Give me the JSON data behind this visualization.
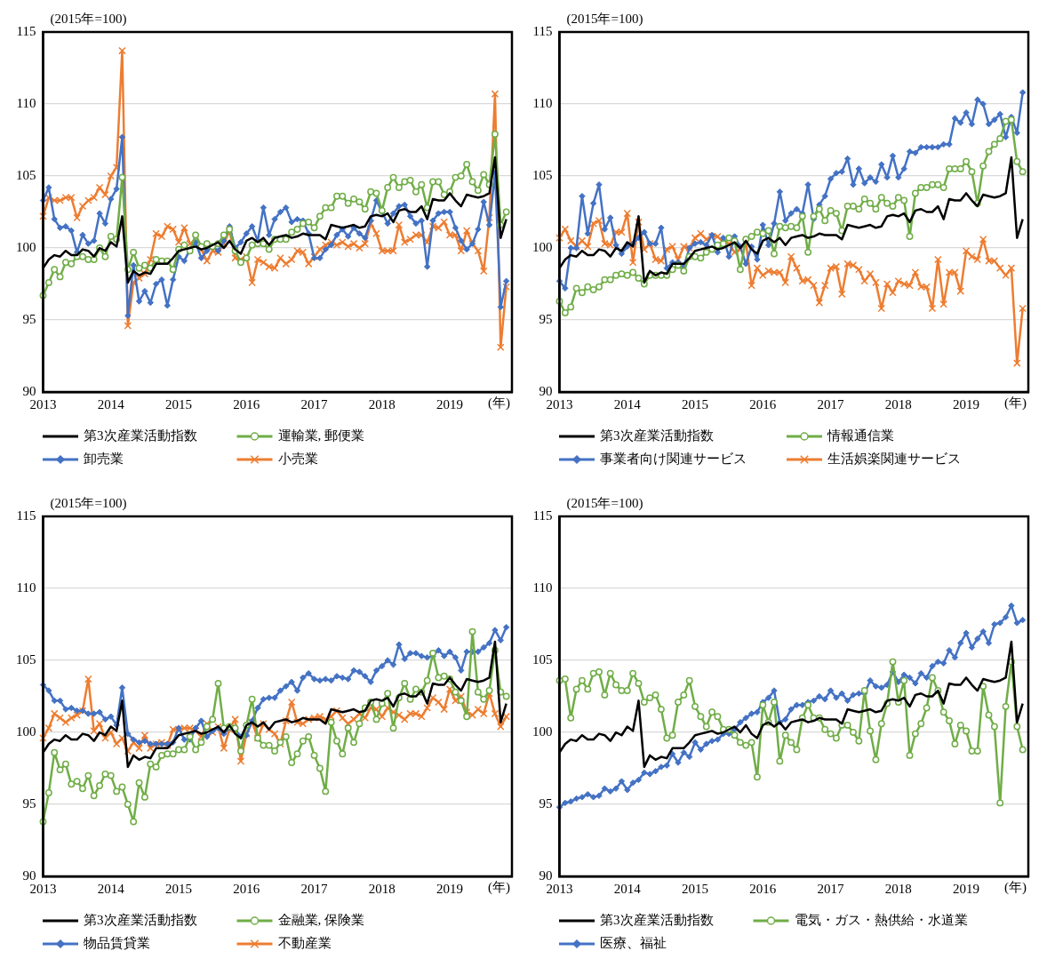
{
  "chart_data": [
    {
      "type": "line",
      "ylabel": "(2015年=100)",
      "xlabel": "(年)",
      "grid": "y",
      "legend": "bottom",
      "ylim": [
        90,
        115
      ],
      "yticks": [
        90,
        95,
        100,
        105,
        110,
        115
      ],
      "categories": [
        "2013",
        null,
        null,
        null,
        null,
        null,
        null,
        null,
        null,
        null,
        null,
        null,
        "2014",
        null,
        null,
        null,
        null,
        null,
        null,
        null,
        null,
        null,
        null,
        null,
        "2015",
        null,
        null,
        null,
        null,
        null,
        null,
        null,
        null,
        null,
        null,
        null,
        "2016",
        null,
        null,
        null,
        null,
        null,
        null,
        null,
        null,
        null,
        null,
        null,
        "2017",
        null,
        null,
        null,
        null,
        null,
        null,
        null,
        null,
        null,
        null,
        null,
        "2018",
        null,
        null,
        null,
        null,
        null,
        null,
        null,
        null,
        null,
        null,
        null,
        "2019",
        null,
        null,
        null,
        null,
        null,
        null,
        null,
        null,
        null,
        null,
        null
      ],
      "series": [
        {
          "name": "第3次産業活動指数",
          "color": "#000000",
          "marker": "none",
          "values": [
            98.6,
            99.2,
            99.5,
            99.4,
            99.8,
            99.5,
            99.5,
            99.9,
            99.8,
            99.4,
            100.0,
            99.8,
            100.4,
            100.1,
            102.2,
            97.6,
            98.4,
            98.1,
            98.3,
            98.2,
            98.9,
            98.9,
            98.9,
            99.3,
            99.8,
            99.9,
            100.0,
            100.1,
            99.9,
            100.0,
            100.2,
            100.4,
            100.0,
            100.5,
            99.9,
            99.6,
            100.5,
            100.7,
            100.4,
            100.7,
            100.2,
            100.7,
            100.8,
            100.9,
            100.7,
            100.8,
            101.0,
            100.9,
            100.9,
            100.9,
            100.6,
            101.6,
            101.5,
            101.4,
            101.5,
            101.6,
            101.4,
            101.5,
            102.2,
            102.3,
            102.2,
            102.4,
            101.8,
            102.6,
            102.7,
            102.5,
            102.5,
            102.9,
            102.0,
            103.4,
            103.3,
            103.3,
            103.8,
            103.3,
            102.9,
            103.7,
            103.6,
            103.5,
            103.6,
            103.8,
            106.3,
            100.7,
            102.0,
            null
          ]
        },
        {
          "name": "運輸業, 郵便業",
          "color": "#70ad47",
          "marker": "circle",
          "values": [
            96.7,
            97.6,
            98.5,
            98.0,
            99.0,
            98.9,
            99.4,
            99.4,
            99.2,
            99.2,
            100.0,
            99.4,
            100.8,
            100.6,
            104.9,
            98.5,
            99.7,
            98.6,
            98.8,
            98.6,
            99.2,
            99.1,
            99.1,
            98.5,
            99.9,
            100.2,
            99.8,
            100.9,
            100.1,
            100.3,
            100.1,
            100.3,
            100.9,
            101.3,
            99.8,
            99.0,
            99.3,
            100.2,
            100.3,
            100.3,
            99.9,
            100.6,
            100.6,
            100.6,
            101.1,
            101.3,
            101.7,
            101.8,
            101.4,
            102.2,
            102.8,
            102.8,
            103.6,
            103.6,
            103.1,
            103.4,
            103.2,
            102.7,
            103.9,
            103.8,
            102.6,
            104.2,
            104.9,
            104.2,
            104.6,
            104.7,
            103.9,
            104.4,
            102.8,
            104.6,
            104.6,
            103.7,
            103.9,
            104.9,
            105.0,
            105.8,
            104.6,
            104.0,
            105.1,
            104.4,
            107.9,
            101.6,
            102.5,
            null
          ]
        },
        {
          "name": "卸売業",
          "color": "#4472c4",
          "marker": "diamond",
          "values": [
            103.3,
            104.2,
            102.0,
            101.4,
            101.5,
            101.2,
            99.7,
            100.9,
            100.3,
            100.5,
            102.4,
            101.7,
            103.4,
            104.1,
            107.7,
            95.3,
            98.8,
            96.3,
            97.0,
            96.2,
            97.5,
            97.8,
            96.0,
            97.8,
            99.4,
            99.1,
            99.9,
            100.4,
            99.3,
            99.8,
            100.1,
            99.8,
            100.5,
            101.5,
            100.0,
            100.4,
            101.0,
            101.5,
            100.5,
            102.8,
            100.9,
            102.0,
            102.5,
            102.8,
            101.8,
            102.0,
            101.9,
            101.0,
            99.3,
            99.3,
            99.9,
            100.2,
            100.9,
            101.3,
            100.8,
            101.4,
            101.0,
            100.7,
            101.9,
            103.3,
            102.5,
            101.7,
            102.4,
            102.9,
            103.0,
            102.2,
            101.7,
            101.9,
            98.7,
            101.9,
            102.4,
            102.5,
            102.5,
            101.4,
            100.5,
            99.9,
            100.3,
            101.3,
            103.2,
            101.6,
            105.2,
            95.9,
            97.7,
            null
          ]
        },
        {
          "name": "小売業",
          "color": "#ed7d31",
          "marker": "cross",
          "values": [
            102.2,
            103.5,
            103.3,
            103.3,
            103.5,
            103.5,
            102.1,
            102.9,
            103.3,
            103.5,
            104.2,
            103.7,
            105.0,
            105.6,
            113.7,
            94.6,
            97.6,
            97.9,
            98.2,
            99.2,
            101.0,
            100.8,
            101.5,
            101.3,
            100.4,
            101.4,
            100.3,
            100.3,
            99.9,
            99.1,
            99.8,
            99.7,
            100.3,
            101.2,
            99.3,
            99.2,
            99.4,
            97.6,
            99.2,
            99.0,
            98.7,
            98.6,
            99.3,
            98.9,
            99.2,
            99.8,
            99.7,
            98.9,
            99.4,
            99.9,
            100.2,
            100.4,
            100.2,
            100.4,
            100.1,
            100.3,
            100.0,
            100.3,
            101.7,
            101.0,
            99.8,
            99.8,
            99.8,
            101.6,
            100.4,
            100.6,
            100.9,
            100.9,
            100.4,
            101.5,
            101.4,
            101.8,
            100.9,
            100.9,
            99.8,
            101.2,
            100.3,
            99.8,
            98.4,
            102.1,
            110.7,
            93.1,
            97.3,
            null
          ]
        }
      ]
    },
    {
      "type": "line",
      "ylabel": "(2015年=100)",
      "xlabel": "(年)",
      "grid": "y",
      "legend": "bottom",
      "ylim": [
        90,
        115
      ],
      "yticks": [
        90,
        95,
        100,
        105,
        110,
        115
      ],
      "categories": [
        "2013",
        null,
        null,
        null,
        null,
        null,
        null,
        null,
        null,
        null,
        null,
        null,
        "2014",
        null,
        null,
        null,
        null,
        null,
        null,
        null,
        null,
        null,
        null,
        null,
        "2015",
        null,
        null,
        null,
        null,
        null,
        null,
        null,
        null,
        null,
        null,
        null,
        "2016",
        null,
        null,
        null,
        null,
        null,
        null,
        null,
        null,
        null,
        null,
        null,
        "2017",
        null,
        null,
        null,
        null,
        null,
        null,
        null,
        null,
        null,
        null,
        null,
        "2018",
        null,
        null,
        null,
        null,
        null,
        null,
        null,
        null,
        null,
        null,
        null,
        "2019",
        null,
        null,
        null,
        null,
        null,
        null,
        null,
        null,
        null,
        null,
        null
      ],
      "series": [
        {
          "name": "第3次産業活動指数",
          "color": "#000000",
          "marker": "none",
          "values": [
            98.6,
            99.2,
            99.5,
            99.4,
            99.8,
            99.5,
            99.5,
            99.9,
            99.8,
            99.4,
            100.0,
            99.8,
            100.4,
            100.1,
            102.2,
            97.6,
            98.4,
            98.1,
            98.3,
            98.2,
            98.9,
            98.9,
            98.9,
            99.3,
            99.8,
            99.9,
            100.0,
            100.1,
            99.9,
            100.0,
            100.2,
            100.4,
            100.0,
            100.5,
            99.9,
            99.6,
            100.5,
            100.7,
            100.4,
            100.7,
            100.2,
            100.7,
            100.8,
            100.9,
            100.7,
            100.8,
            101.0,
            100.9,
            100.9,
            100.9,
            100.6,
            101.6,
            101.5,
            101.4,
            101.5,
            101.6,
            101.4,
            101.5,
            102.2,
            102.3,
            102.2,
            102.4,
            101.8,
            102.6,
            102.7,
            102.5,
            102.5,
            102.9,
            102.0,
            103.4,
            103.3,
            103.3,
            103.8,
            103.3,
            102.9,
            103.7,
            103.6,
            103.5,
            103.6,
            103.8,
            106.3,
            100.7,
            102.0,
            null
          ]
        },
        {
          "name": "情報通信業",
          "color": "#70ad47",
          "marker": "circle",
          "values": [
            96.3,
            95.5,
            95.9,
            97.2,
            96.9,
            97.3,
            97.1,
            97.3,
            97.8,
            97.8,
            98.1,
            98.2,
            98.1,
            98.3,
            97.9,
            97.5,
            98.1,
            98.1,
            98.1,
            98.1,
            98.5,
            98.8,
            98.4,
            99.4,
            99.4,
            99.3,
            99.7,
            99.9,
            100.2,
            100.3,
            100.7,
            100.5,
            98.5,
            100.6,
            100.8,
            101.1,
            101.0,
            101.2,
            99.6,
            101.5,
            101.4,
            101.5,
            101.4,
            102.2,
            99.7,
            102.2,
            102.7,
            101.9,
            102.6,
            102.4,
            101.2,
            102.9,
            102.9,
            102.7,
            103.4,
            103.1,
            102.7,
            103.5,
            103.1,
            102.9,
            103.5,
            103.3,
            100.8,
            103.8,
            104.2,
            104.2,
            104.4,
            104.4,
            104.2,
            105.5,
            105.5,
            105.5,
            106.0,
            105.3,
            103.1,
            105.7,
            106.7,
            107.2,
            107.6,
            108.8,
            108.9,
            106.0,
            105.3,
            null
          ]
        },
        {
          "name": "事業者向け関連サービス",
          "color": "#4472c4",
          "marker": "diamond",
          "values": [
            97.7,
            97.2,
            100.0,
            100.0,
            103.6,
            101.0,
            103.1,
            104.4,
            101.3,
            102.1,
            100.2,
            99.6,
            100.1,
            100.3,
            100.7,
            101.1,
            100.3,
            100.3,
            101.4,
            98.6,
            99.0,
            99.0,
            98.7,
            100.0,
            100.3,
            100.4,
            100.2,
            100.9,
            99.7,
            100.7,
            99.4,
            100.8,
            100.1,
            98.9,
            100.1,
            99.2,
            101.6,
            100.2,
            101.7,
            103.9,
            101.9,
            102.4,
            102.7,
            102.4,
            104.4,
            102.0,
            103.0,
            103.6,
            104.8,
            105.2,
            105.3,
            106.2,
            104.4,
            105.5,
            104.5,
            104.9,
            104.6,
            105.8,
            104.9,
            106.4,
            104.9,
            105.5,
            106.7,
            106.6,
            107.0,
            107.0,
            107.0,
            107.0,
            107.2,
            107.2,
            109.0,
            108.7,
            109.4,
            108.6,
            110.3,
            110.0,
            108.6,
            108.9,
            109.3,
            107.7,
            109.1,
            108.0,
            110.8,
            null
          ]
        },
        {
          "name": "生活娯楽関連サービス",
          "color": "#ed7d31",
          "marker": "cross",
          "values": [
            100.7,
            101.3,
            100.5,
            100.1,
            100.5,
            100.1,
            101.7,
            101.9,
            100.3,
            100.2,
            101.1,
            101.1,
            102.4,
            99.0,
            101.8,
            99.9,
            100.3,
            99.2,
            99.1,
            99.9,
            100.1,
            99.2,
            100.1,
            100.0,
            100.7,
            101.0,
            100.6,
            100.8,
            100.8,
            100.4,
            100.3,
            99.7,
            99.9,
            100.4,
            97.4,
            98.6,
            98.1,
            98.4,
            98.3,
            98.3,
            97.6,
            99.4,
            98.6,
            97.7,
            97.8,
            97.4,
            96.2,
            97.4,
            98.6,
            98.7,
            96.8,
            98.9,
            98.8,
            98.5,
            97.7,
            98.2,
            97.6,
            95.8,
            97.5,
            96.9,
            97.7,
            97.5,
            97.4,
            98.3,
            97.3,
            97.3,
            95.8,
            99.2,
            96.1,
            98.3,
            98.3,
            97.0,
            99.8,
            99.4,
            99.2,
            100.6,
            99.1,
            99.1,
            98.6,
            98.1,
            98.6,
            92.0,
            95.8,
            null
          ]
        }
      ]
    },
    {
      "type": "line",
      "ylabel": "(2015年=100)",
      "xlabel": "(年)",
      "grid": "y",
      "legend": "bottom",
      "ylim": [
        90,
        115
      ],
      "yticks": [
        90,
        95,
        100,
        105,
        110,
        115
      ],
      "categories": [
        "2013",
        null,
        null,
        null,
        null,
        null,
        null,
        null,
        null,
        null,
        null,
        null,
        "2014",
        null,
        null,
        null,
        null,
        null,
        null,
        null,
        null,
        null,
        null,
        null,
        "2015",
        null,
        null,
        null,
        null,
        null,
        null,
        null,
        null,
        null,
        null,
        null,
        "2016",
        null,
        null,
        null,
        null,
        null,
        null,
        null,
        null,
        null,
        null,
        null,
        "2017",
        null,
        null,
        null,
        null,
        null,
        null,
        null,
        null,
        null,
        null,
        null,
        "2018",
        null,
        null,
        null,
        null,
        null,
        null,
        null,
        null,
        null,
        null,
        null,
        "2019",
        null,
        null,
        null,
        null,
        null,
        null,
        null,
        null,
        null,
        null,
        null
      ],
      "series": [
        {
          "name": "第3次産業活動指数",
          "color": "#000000",
          "marker": "none",
          "values": [
            98.6,
            99.2,
            99.5,
            99.4,
            99.8,
            99.5,
            99.5,
            99.9,
            99.8,
            99.4,
            100.0,
            99.8,
            100.4,
            100.1,
            102.2,
            97.6,
            98.4,
            98.1,
            98.3,
            98.2,
            98.9,
            98.9,
            98.9,
            99.3,
            99.8,
            99.9,
            100.0,
            100.1,
            99.9,
            100.0,
            100.2,
            100.4,
            100.0,
            100.5,
            99.9,
            99.6,
            100.5,
            100.7,
            100.4,
            100.7,
            100.2,
            100.7,
            100.8,
            100.9,
            100.7,
            100.8,
            101.0,
            100.9,
            100.9,
            100.9,
            100.6,
            101.6,
            101.5,
            101.4,
            101.5,
            101.6,
            101.4,
            101.5,
            102.2,
            102.3,
            102.2,
            102.4,
            101.8,
            102.6,
            102.7,
            102.5,
            102.5,
            102.9,
            102.0,
            103.4,
            103.3,
            103.3,
            103.8,
            103.3,
            102.9,
            103.7,
            103.6,
            103.5,
            103.6,
            103.8,
            106.3,
            100.7,
            102.0,
            null
          ]
        },
        {
          "name": "金融業, 保険業",
          "color": "#70ad47",
          "marker": "circle",
          "values": [
            93.8,
            95.8,
            98.6,
            97.4,
            97.8,
            96.4,
            96.6,
            96.1,
            97.0,
            95.6,
            96.3,
            97.1,
            97.0,
            95.9,
            96.2,
            95.0,
            93.8,
            96.5,
            95.5,
            97.8,
            97.6,
            98.4,
            98.5,
            98.5,
            98.8,
            98.8,
            99.7,
            98.8,
            99.3,
            100.4,
            100.9,
            103.4,
            100.3,
            100.4,
            100.3,
            98.7,
            100.5,
            102.3,
            99.6,
            99.1,
            99.1,
            98.7,
            99.3,
            99.7,
            97.9,
            98.5,
            99.4,
            99.7,
            98.4,
            97.5,
            95.9,
            100.7,
            99.4,
            98.5,
            100.3,
            99.3,
            100.6,
            101.7,
            102.1,
            100.9,
            102.0,
            102.7,
            100.3,
            102.4,
            103.4,
            102.3,
            103.0,
            102.8,
            103.6,
            105.5,
            103.8,
            103.9,
            103.7,
            102.8,
            102.2,
            101.1,
            107.0,
            102.8,
            102.3,
            102.9,
            105.7,
            102.8,
            102.5,
            null
          ]
        },
        {
          "name": "物品賃貸業",
          "color": "#4472c4",
          "marker": "diamond",
          "values": [
            103.3,
            102.9,
            102.2,
            102.2,
            101.6,
            101.7,
            101.5,
            101.5,
            101.3,
            101.3,
            101.4,
            100.9,
            101.1,
            100.5,
            103.1,
            99.9,
            99.5,
            99.3,
            99.4,
            99.2,
            99.2,
            99.2,
            99.2,
            99.3,
            100.3,
            99.5,
            99.5,
            100.3,
            100.8,
            99.7,
            100.1,
            100.3,
            99.9,
            100.3,
            100.2,
            99.7,
            99.8,
            100.8,
            101.7,
            102.3,
            102.4,
            102.4,
            102.9,
            103.2,
            103.5,
            102.9,
            103.8,
            104.1,
            103.7,
            103.6,
            103.7,
            103.6,
            103.9,
            103.8,
            103.7,
            104.3,
            104.2,
            103.9,
            103.5,
            104.3,
            104.6,
            105.0,
            104.7,
            106.1,
            105.1,
            105.5,
            105.5,
            105.3,
            105.2,
            105.3,
            105.7,
            105.3,
            105.6,
            105.2,
            104.3,
            105.6,
            105.6,
            105.6,
            105.9,
            106.2,
            107.1,
            106.4,
            107.3,
            null
          ]
        },
        {
          "name": "不動産業",
          "color": "#ed7d31",
          "marker": "cross",
          "values": [
            99.6,
            100.3,
            101.3,
            101.0,
            100.7,
            101.0,
            101.2,
            101.5,
            103.7,
            100.1,
            100.6,
            99.6,
            100.0,
            99.2,
            99.6,
            98.7,
            99.3,
            98.9,
            99.8,
            98.9,
            99.2,
            99.3,
            99.1,
            100.2,
            100.2,
            100.3,
            100.3,
            100.1,
            99.7,
            100.6,
            100.0,
            100.4,
            98.9,
            100.2,
            100.9,
            98.0,
            99.9,
            100.7,
            99.6,
            100.6,
            100.2,
            99.9,
            99.2,
            100.8,
            102.1,
            100.7,
            100.6,
            100.9,
            101.0,
            101.1,
            100.9,
            101.1,
            101.5,
            101.0,
            100.6,
            100.9,
            101.3,
            101.0,
            101.7,
            101.6,
            101.1,
            101.7,
            101.4,
            101.2,
            100.9,
            101.3,
            101.3,
            101.1,
            101.7,
            102.4,
            102.1,
            101.6,
            103.0,
            102.2,
            102.5,
            101.4,
            101.2,
            101.6,
            101.3,
            102.7,
            101.3,
            100.4,
            101.1,
            null
          ]
        }
      ]
    },
    {
      "type": "line",
      "ylabel": "(2015年=100)",
      "xlabel": "(年)",
      "grid": "y",
      "legend": "bottom",
      "ylim": [
        90,
        115
      ],
      "yticks": [
        90,
        95,
        100,
        105,
        110,
        115
      ],
      "categories": [
        "2013",
        null,
        null,
        null,
        null,
        null,
        null,
        null,
        null,
        null,
        null,
        null,
        "2014",
        null,
        null,
        null,
        null,
        null,
        null,
        null,
        null,
        null,
        null,
        null,
        "2015",
        null,
        null,
        null,
        null,
        null,
        null,
        null,
        null,
        null,
        null,
        null,
        "2016",
        null,
        null,
        null,
        null,
        null,
        null,
        null,
        null,
        null,
        null,
        null,
        "2017",
        null,
        null,
        null,
        null,
        null,
        null,
        null,
        null,
        null,
        null,
        null,
        "2018",
        null,
        null,
        null,
        null,
        null,
        null,
        null,
        null,
        null,
        null,
        null,
        "2019",
        null,
        null,
        null,
        null,
        null,
        null,
        null,
        null,
        null,
        null,
        null
      ],
      "series": [
        {
          "name": "第3次産業活動指数",
          "color": "#000000",
          "marker": "none",
          "values": [
            98.6,
            99.2,
            99.5,
            99.4,
            99.8,
            99.5,
            99.5,
            99.9,
            99.8,
            99.4,
            100.0,
            99.8,
            100.4,
            100.1,
            102.2,
            97.6,
            98.4,
            98.1,
            98.3,
            98.2,
            98.9,
            98.9,
            98.9,
            99.3,
            99.8,
            99.9,
            100.0,
            100.1,
            99.9,
            100.0,
            100.2,
            100.4,
            100.0,
            100.5,
            99.9,
            99.6,
            100.5,
            100.7,
            100.4,
            100.7,
            100.2,
            100.7,
            100.8,
            100.9,
            100.7,
            100.8,
            101.0,
            100.9,
            100.9,
            100.9,
            100.6,
            101.6,
            101.5,
            101.4,
            101.5,
            101.6,
            101.4,
            101.5,
            102.2,
            102.3,
            102.2,
            102.4,
            101.8,
            102.6,
            102.7,
            102.5,
            102.5,
            102.9,
            102.0,
            103.4,
            103.3,
            103.3,
            103.8,
            103.3,
            102.9,
            103.7,
            103.6,
            103.5,
            103.6,
            103.8,
            106.3,
            100.7,
            102.0,
            null
          ]
        },
        {
          "name": "電気・ガス・熱供給・水道業",
          "color": "#70ad47",
          "marker": "circle",
          "values": [
            103.6,
            103.7,
            101.0,
            103.0,
            103.6,
            103.0,
            104.1,
            104.2,
            102.6,
            104.1,
            103.3,
            102.9,
            102.9,
            104.1,
            103.4,
            102.1,
            102.4,
            102.6,
            101.6,
            99.6,
            99.8,
            102.1,
            102.6,
            103.6,
            101.8,
            101.1,
            100.4,
            101.4,
            101.1,
            100.2,
            100.2,
            99.8,
            99.3,
            99.1,
            99.3,
            96.9,
            101.9,
            100.7,
            102.1,
            98.0,
            99.8,
            99.3,
            98.8,
            101.0,
            101.9,
            101.0,
            101.0,
            100.2,
            99.9,
            99.6,
            100.5,
            100.5,
            100.0,
            99.4,
            102.9,
            100.1,
            98.1,
            100.6,
            102.0,
            104.9,
            102.1,
            103.6,
            98.4,
            99.9,
            100.6,
            101.7,
            103.8,
            102.9,
            101.4,
            100.8,
            99.2,
            100.5,
            100.1,
            98.7,
            98.7,
            103.2,
            101.2,
            100.4,
            95.1,
            101.8,
            104.9,
            100.4,
            98.8,
            null
          ]
        },
        {
          "name": "医療、福祉",
          "color": "#4472c4",
          "marker": "diamond",
          "values": [
            94.8,
            95.1,
            95.2,
            95.4,
            95.5,
            95.7,
            95.5,
            95.6,
            96.1,
            95.9,
            96.1,
            96.6,
            96.0,
            96.5,
            96.7,
            97.2,
            97.1,
            97.3,
            97.6,
            97.7,
            98.5,
            97.9,
            98.6,
            98.3,
            99.3,
            98.8,
            99.2,
            99.4,
            99.5,
            99.9,
            99.9,
            100.2,
            100.7,
            101.0,
            101.3,
            101.4,
            102.1,
            102.4,
            102.9,
            100.7,
            100.9,
            101.6,
            101.9,
            101.9,
            102.1,
            102.2,
            102.5,
            102.3,
            102.9,
            102.4,
            102.7,
            102.2,
            102.6,
            102.7,
            102.7,
            103.6,
            103.2,
            103.1,
            103.3,
            104.2,
            103.5,
            104.0,
            103.8,
            103.4,
            104.1,
            103.8,
            104.6,
            104.9,
            104.8,
            105.7,
            105.2,
            106.2,
            106.9,
            105.9,
            106.5,
            107.0,
            106.2,
            107.5,
            107.6,
            108.0,
            108.8,
            107.6,
            107.8,
            null
          ]
        }
      ]
    }
  ]
}
